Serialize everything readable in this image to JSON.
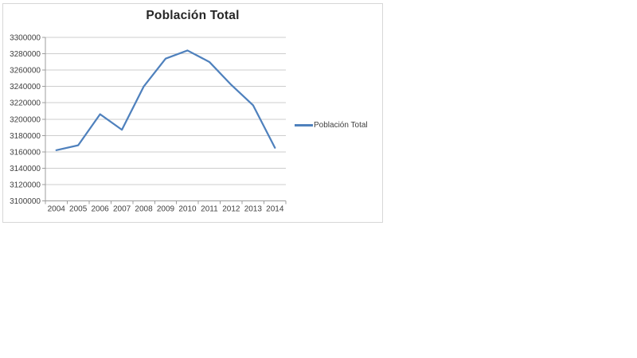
{
  "chart": {
    "title": "Población Total",
    "legend": "Población Total",
    "colors": {
      "line": "#4F81BD",
      "gridline": "#CDCDCD",
      "axis": "#9C9C9C",
      "frame_border": "#D7D7D7",
      "title_text": "#262626",
      "label_text": "#3F3F3F"
    }
  },
  "chart_data": {
    "type": "line",
    "title": "Población Total",
    "categories": [
      "2004",
      "2005",
      "2006",
      "2007",
      "2008",
      "2009",
      "2010",
      "2011",
      "2012",
      "2013",
      "2014"
    ],
    "series": [
      {
        "name": "Población Total",
        "values": [
          3162000,
          3168000,
          3206000,
          3187000,
          3240000,
          3274000,
          3284000,
          3270000,
          3242000,
          3217000,
          3165000
        ]
      }
    ],
    "ylim": [
      3100000,
      3300000
    ],
    "yticks": [
      3100000,
      3120000,
      3140000,
      3160000,
      3180000,
      3200000,
      3220000,
      3240000,
      3260000,
      3280000,
      3300000
    ],
    "xlabel": "",
    "ylabel": "",
    "grid": true,
    "legend_position": "right-middle"
  }
}
